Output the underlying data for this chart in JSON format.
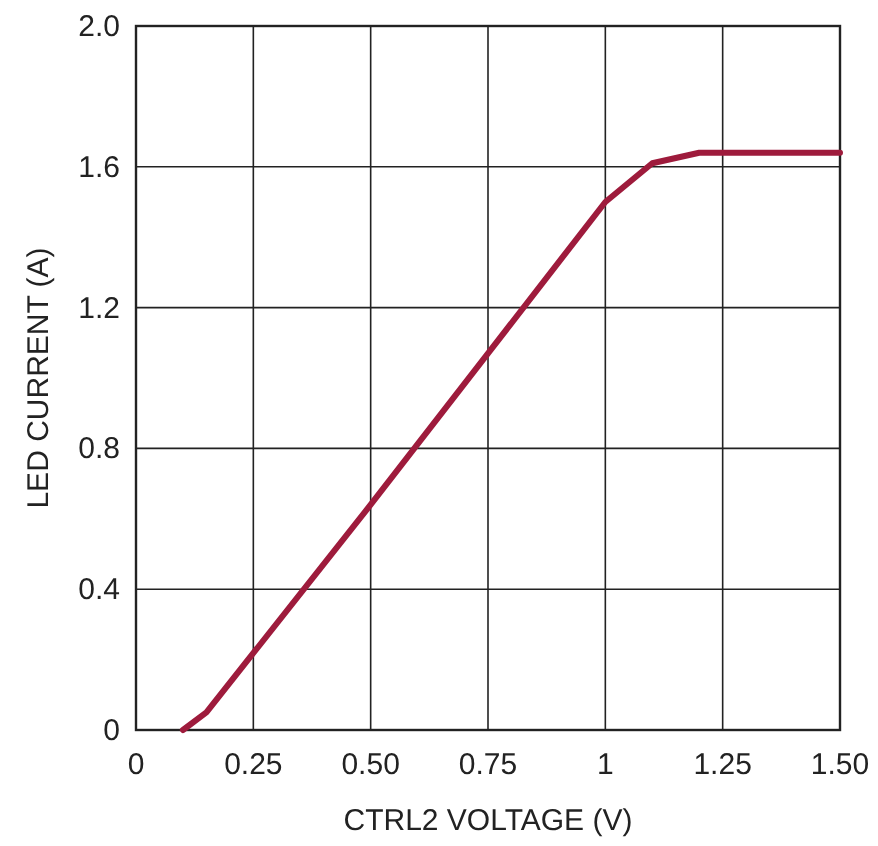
{
  "chart_data": {
    "type": "line",
    "xlabel": "CTRL2 VOLTAGE (V)",
    "ylabel": "LED CURRENT (A)",
    "x": [
      0.1,
      0.15,
      0.5,
      0.75,
      1.0,
      1.1,
      1.2,
      1.5
    ],
    "series": [
      {
        "color": "#9e1b3c",
        "values": [
          0,
          0.05,
          0.64,
          1.07,
          1.5,
          1.61,
          1.64,
          1.64
        ]
      }
    ],
    "xlim": [
      0,
      1.5
    ],
    "xticks": [
      0,
      0.25,
      {
        "value": 0.5,
        "label": "0.50"
      },
      0.75,
      1,
      1.25,
      {
        "value": 1.5,
        "label": "1.50"
      }
    ],
    "ylim": [
      0,
      2
    ],
    "yticks": [
      0,
      0.4,
      0.8,
      1.2,
      1.6,
      {
        "value": 2,
        "label": "2.0"
      }
    ],
    "grid": true,
    "marker": "none",
    "line_style": "solid"
  }
}
